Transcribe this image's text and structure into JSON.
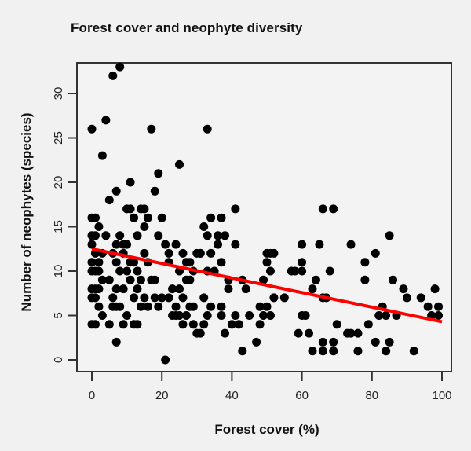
{
  "chart_data": {
    "type": "scatter",
    "title": "Forest cover and neophyte diversity",
    "xlabel": "Forest cover (%)",
    "ylabel": "Number of neophytes (species)",
    "xlim": [
      -3,
      103
    ],
    "ylim": [
      -1.3,
      33.5
    ],
    "xticks": [
      0,
      20,
      40,
      60,
      80,
      100
    ],
    "yticks": [
      0,
      5,
      10,
      15,
      20,
      25,
      30
    ],
    "grid": false,
    "legend": null,
    "marker_color": "#000000",
    "trend_line": {
      "color": "#ff0000",
      "x": [
        0,
        100
      ],
      "y": [
        12.5,
        4.3
      ]
    },
    "points": [
      [
        8,
        33
      ],
      [
        6,
        32
      ],
      [
        4,
        27
      ],
      [
        0,
        26
      ],
      [
        17,
        26
      ],
      [
        33,
        26
      ],
      [
        3,
        23
      ],
      [
        25,
        22
      ],
      [
        19,
        21
      ],
      [
        11,
        20
      ],
      [
        18,
        19
      ],
      [
        7,
        19
      ],
      [
        5,
        18
      ],
      [
        0,
        16
      ],
      [
        1,
        16
      ],
      [
        2,
        15
      ],
      [
        0,
        14
      ],
      [
        0,
        13
      ],
      [
        1,
        14
      ],
      [
        4,
        14
      ],
      [
        3,
        12
      ],
      [
        1,
        12
      ],
      [
        0,
        11
      ],
      [
        2,
        11
      ],
      [
        1,
        10
      ],
      [
        0,
        10
      ],
      [
        2,
        10
      ],
      [
        3,
        9
      ],
      [
        0,
        8
      ],
      [
        1,
        8
      ],
      [
        2,
        8
      ],
      [
        0,
        7
      ],
      [
        1,
        7
      ],
      [
        2,
        6
      ],
      [
        3,
        5
      ],
      [
        0,
        4
      ],
      [
        1,
        4
      ],
      [
        10,
        17
      ],
      [
        11,
        17
      ],
      [
        12,
        16
      ],
      [
        14,
        17
      ],
      [
        15,
        17
      ],
      [
        16,
        16
      ],
      [
        13,
        14
      ],
      [
        15,
        15
      ],
      [
        8,
        14
      ],
      [
        7,
        13
      ],
      [
        9,
        13
      ],
      [
        10,
        13
      ],
      [
        11,
        11
      ],
      [
        12,
        11
      ],
      [
        16,
        11
      ],
      [
        9,
        12
      ],
      [
        6,
        12
      ],
      [
        7,
        11
      ],
      [
        8,
        10
      ],
      [
        10,
        10
      ],
      [
        13,
        10
      ],
      [
        15,
        12
      ],
      [
        17,
        9
      ],
      [
        18,
        9
      ],
      [
        20,
        16
      ],
      [
        19,
        14
      ],
      [
        21,
        13
      ],
      [
        22,
        12
      ],
      [
        14,
        9
      ],
      [
        11,
        9
      ],
      [
        13,
        8
      ],
      [
        9,
        8
      ],
      [
        7,
        8
      ],
      [
        5,
        9
      ],
      [
        6,
        7
      ],
      [
        8,
        6
      ],
      [
        6,
        6
      ],
      [
        7,
        6
      ],
      [
        12,
        7
      ],
      [
        14,
        6
      ],
      [
        15,
        7
      ],
      [
        10,
        5
      ],
      [
        5,
        4
      ],
      [
        9,
        4
      ],
      [
        13,
        4
      ],
      [
        12,
        4
      ],
      [
        7,
        2
      ],
      [
        16,
        6
      ],
      [
        18,
        7
      ],
      [
        20,
        7
      ],
      [
        19,
        6
      ],
      [
        21,
        0
      ],
      [
        22,
        11
      ],
      [
        23,
        8
      ],
      [
        24,
        6
      ],
      [
        25,
        10
      ],
      [
        24,
        13
      ],
      [
        27,
        11
      ],
      [
        26,
        12
      ],
      [
        28,
        11
      ],
      [
        29,
        10
      ],
      [
        30,
        12
      ],
      [
        31,
        12
      ],
      [
        27,
        9
      ],
      [
        25,
        8
      ],
      [
        26,
        7
      ],
      [
        28,
        9
      ],
      [
        23,
        5
      ],
      [
        24,
        5
      ],
      [
        25,
        5
      ],
      [
        27,
        5
      ],
      [
        28,
        6
      ],
      [
        29,
        6
      ],
      [
        30,
        3
      ],
      [
        29,
        4
      ],
      [
        26,
        4
      ],
      [
        22,
        7
      ],
      [
        41,
        17
      ],
      [
        34,
        16
      ],
      [
        37,
        16
      ],
      [
        32,
        15
      ],
      [
        33,
        14
      ],
      [
        36,
        14
      ],
      [
        38,
        14
      ],
      [
        36,
        13
      ],
      [
        41,
        13
      ],
      [
        31,
        12
      ],
      [
        34,
        12
      ],
      [
        50,
        12
      ],
      [
        51,
        12
      ],
      [
        37,
        11
      ],
      [
        50,
        11
      ],
      [
        33,
        10
      ],
      [
        51,
        10
      ],
      [
        43,
        9
      ],
      [
        49,
        9
      ],
      [
        39,
        8
      ],
      [
        52,
        7
      ],
      [
        32,
        7
      ],
      [
        34,
        6
      ],
      [
        37,
        6
      ],
      [
        48,
        6
      ],
      [
        50,
        6
      ],
      [
        33,
        5
      ],
      [
        37,
        5
      ],
      [
        41,
        5
      ],
      [
        49,
        5
      ],
      [
        51,
        5
      ],
      [
        32,
        4
      ],
      [
        40,
        4
      ],
      [
        42,
        4
      ],
      [
        48,
        4
      ],
      [
        31,
        3
      ],
      [
        38,
        3
      ],
      [
        47,
        2
      ],
      [
        43,
        1
      ],
      [
        35,
        10
      ],
      [
        39,
        9
      ],
      [
        45,
        5
      ],
      [
        44,
        8
      ],
      [
        60,
        13
      ],
      [
        65,
        13
      ],
      [
        52,
        12
      ],
      [
        60,
        11
      ],
      [
        57,
        10
      ],
      [
        60,
        10
      ],
      [
        68,
        10
      ],
      [
        64,
        9
      ],
      [
        63,
        8
      ],
      [
        66,
        7
      ],
      [
        67,
        7
      ],
      [
        55,
        7
      ],
      [
        60,
        5
      ],
      [
        61,
        5
      ],
      [
        70,
        4
      ],
      [
        59,
        3
      ],
      [
        62,
        3
      ],
      [
        66,
        2
      ],
      [
        69,
        2
      ],
      [
        63,
        1
      ],
      [
        66,
        1
      ],
      [
        69,
        1
      ],
      [
        66,
        17
      ],
      [
        69,
        17
      ],
      [
        58,
        10
      ],
      [
        85,
        14
      ],
      [
        74,
        13
      ],
      [
        81,
        12
      ],
      [
        78,
        11
      ],
      [
        78,
        9
      ],
      [
        86,
        9
      ],
      [
        89,
        8
      ],
      [
        98,
        8
      ],
      [
        90,
        7
      ],
      [
        94,
        7
      ],
      [
        96,
        6
      ],
      [
        99,
        6
      ],
      [
        83,
        6
      ],
      [
        82,
        5
      ],
      [
        84,
        5
      ],
      [
        87,
        5
      ],
      [
        97,
        5
      ],
      [
        99,
        5
      ],
      [
        79,
        4
      ],
      [
        73,
        3
      ],
      [
        74,
        3
      ],
      [
        76,
        3
      ],
      [
        81,
        2
      ],
      [
        85,
        2
      ],
      [
        76,
        1
      ],
      [
        84,
        1
      ],
      [
        92,
        1
      ]
    ]
  }
}
